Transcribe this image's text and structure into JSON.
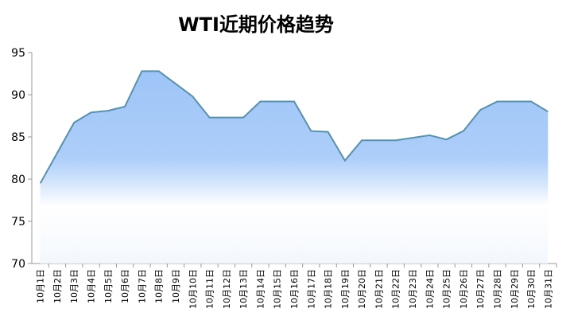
{
  "chart_data": {
    "type": "area",
    "title": "WTI近期价格趋势",
    "categories": [
      "10月1日",
      "10月2日",
      "10月3日",
      "10月4日",
      "10月5日",
      "10月6日",
      "10月7日",
      "10月8日",
      "10月9日",
      "10月10日",
      "10月11日",
      "10月12日",
      "10月13日",
      "10月14日",
      "10月15日",
      "10月16日",
      "10月17日",
      "10月18日",
      "10月19日",
      "10月20日",
      "10月21日",
      "10月22日",
      "10月23日",
      "10月24日",
      "10月25日",
      "10月26日",
      "10月27日",
      "10月28日",
      "10月29日",
      "10月30日",
      "10月31日"
    ],
    "values": [
      79.5,
      83.1,
      86.7,
      87.9,
      88.1,
      88.6,
      92.8,
      92.8,
      91.3,
      89.8,
      87.3,
      87.3,
      87.3,
      89.2,
      89.2,
      89.2,
      85.7,
      85.6,
      82.2,
      84.6,
      84.6,
      84.6,
      84.9,
      85.2,
      84.7,
      85.7,
      88.2,
      89.2,
      89.2,
      89.2,
      88.0
    ],
    "color": "#5b8fa8",
    "fill_color": "#9ec5f8",
    "ylim": [
      70,
      95
    ],
    "yticks": [
      70,
      75,
      80,
      85,
      90,
      95
    ],
    "grid": false
  }
}
